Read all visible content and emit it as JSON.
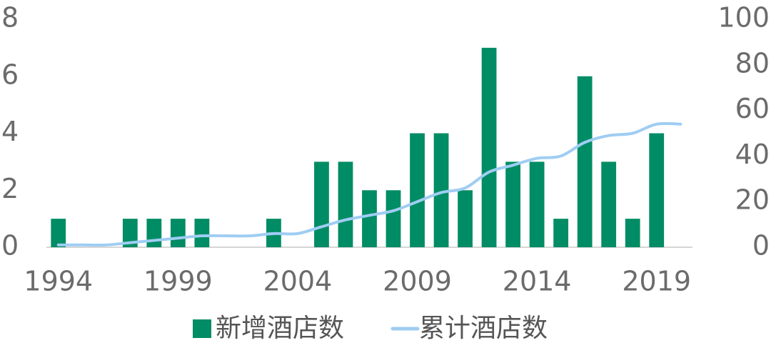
{
  "chart_data": {
    "type": "bar-line",
    "x": [
      1994,
      1995,
      1996,
      1997,
      1998,
      1999,
      2000,
      2001,
      2002,
      2003,
      2004,
      2005,
      2006,
      2007,
      2008,
      2009,
      2010,
      2011,
      2012,
      2013,
      2014,
      2015,
      2016,
      2017,
      2018,
      2019,
      2020
    ],
    "xlim": [
      1993.5,
      2020.5
    ],
    "xticks": [
      1994,
      1999,
      2004,
      2009,
      2014,
      2019
    ],
    "ylim": [
      0,
      8
    ],
    "yticks": [
      0,
      2,
      4,
      6,
      8
    ],
    "y2lim": [
      0,
      100
    ],
    "y2ticks": [
      0,
      20,
      40,
      60,
      80,
      100
    ],
    "legend": "bottom",
    "series": [
      {
        "name": "新增酒店数",
        "type": "bar",
        "color": "#008c64",
        "values": [
          1,
          0,
          0,
          1,
          1,
          1,
          1,
          0,
          0,
          1,
          0,
          3,
          3,
          2,
          2,
          4,
          4,
          2,
          7,
          3,
          3,
          1,
          6,
          3,
          1,
          4,
          0
        ]
      },
      {
        "name": "累计酒店数",
        "type": "line",
        "axis": "y2",
        "color": "#9fcdf3",
        "values": [
          1,
          1,
          1,
          2,
          3,
          4,
          5,
          5,
          5,
          6,
          6,
          9,
          12,
          14,
          16,
          20,
          24,
          26,
          33,
          36,
          39,
          40,
          46,
          49,
          50,
          54,
          54
        ]
      }
    ]
  }
}
